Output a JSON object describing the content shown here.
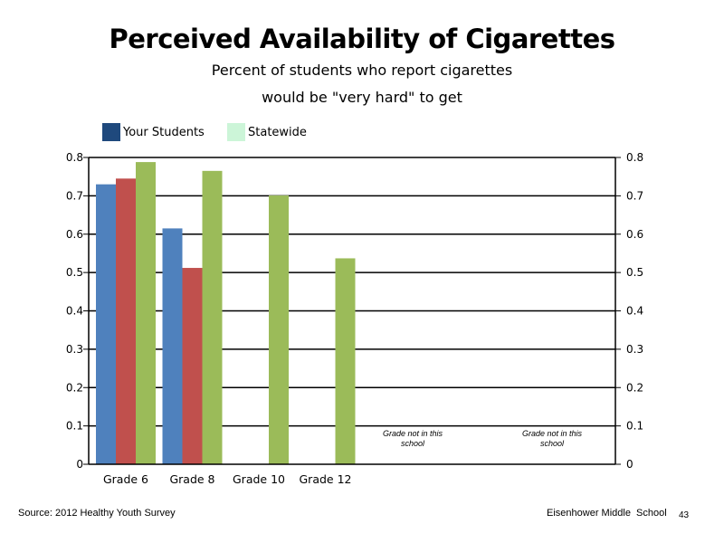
{
  "chart_data": {
    "type": "bar",
    "title": "Perceived Availability of Cigarettes",
    "subtitle_lines": [
      "Percent of students who report cigarettes",
      "would be \"very hard\" to get"
    ],
    "categories": [
      "Grade 6",
      "Grade 8",
      "Grade 10",
      "Grade 12"
    ],
    "series": [
      {
        "name": "Your Students",
        "color": "#4f81bd",
        "values": [
          0.73,
          0.615,
          null,
          null
        ]
      },
      {
        "name": "",
        "color": "#c0504d",
        "values": [
          0.745,
          0.512,
          null,
          null
        ]
      },
      {
        "name": "Statewide",
        "color": "#9bbb59",
        "values": [
          0.788,
          0.765,
          0.701,
          0.537
        ]
      }
    ],
    "legend": [
      {
        "label": "Your Students",
        "color": "#1f497d"
      },
      {
        "label": "Statewide",
        "color": "#ccf5d8"
      }
    ],
    "ylim": [
      0,
      0.8
    ],
    "yticks": [
      "0",
      "0.1",
      "0.2",
      "0.3",
      "0.4",
      "0.5",
      "0.6",
      "0.7",
      "0.8"
    ],
    "grid": true,
    "legend_position": "top-left",
    "notes": [
      "Grade not in this school",
      "Grade not in this school"
    ]
  },
  "footer": {
    "source": "Source: 2012 Healthy Youth Survey",
    "school": "Eisenhower Middle  School",
    "page": "43"
  }
}
